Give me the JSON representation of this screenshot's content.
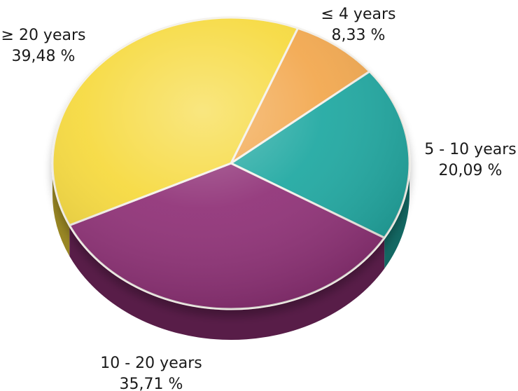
{
  "chart_data": {
    "type": "pie",
    "title": "",
    "slices": [
      {
        "label": "≤ 4 years",
        "value": 8.33,
        "value_text": "8,33 %",
        "color": "#F2A64B"
      },
      {
        "label": "5 - 10 years",
        "value": 20.09,
        "value_text": "20,09 %",
        "color": "#1FA7A0"
      },
      {
        "label": "10 - 20 years",
        "value": 35.71,
        "value_text": "35,71 %",
        "color": "#8E2E74"
      },
      {
        "label": "≥ 20 years",
        "value": 39.48,
        "value_text": "39,48 %",
        "color": "#F6D93A"
      }
    ]
  }
}
